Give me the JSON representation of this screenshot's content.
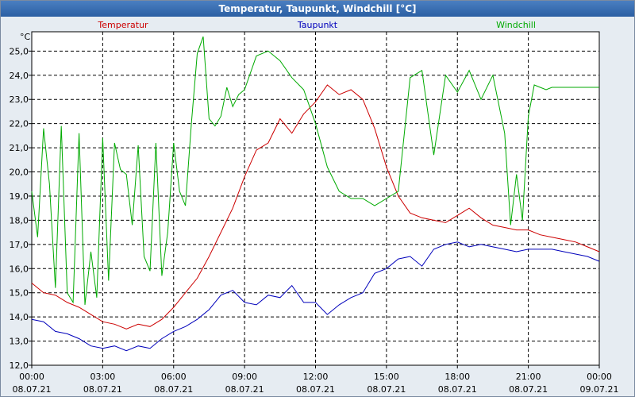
{
  "window": {
    "title": "Temperatur, Taupunkt, Windchill [°C]"
  },
  "chart_data": {
    "type": "line",
    "title": "Temperatur, Taupunkt, Windchill [°C]",
    "ylabel": "°C",
    "xlabel": "",
    "ylim": [
      12.0,
      25.8
    ],
    "xlim_hours": [
      0,
      24
    ],
    "grid": true,
    "y_ticks": [
      "12,0",
      "13,0",
      "14,0",
      "15,0",
      "16,0",
      "17,0",
      "18,0",
      "19,0",
      "20,0",
      "21,0",
      "22,0",
      "23,0",
      "24,0",
      "25,0"
    ],
    "x_ticks": [
      {
        "time": "00:00",
        "date": "08.07.21"
      },
      {
        "time": "03:00",
        "date": "08.07.21"
      },
      {
        "time": "06:00",
        "date": "08.07.21"
      },
      {
        "time": "09:00",
        "date": "08.07.21"
      },
      {
        "time": "12:00",
        "date": "08.07.21"
      },
      {
        "time": "15:00",
        "date": "08.07.21"
      },
      {
        "time": "18:00",
        "date": "08.07.21"
      },
      {
        "time": "21:00",
        "date": "08.07.21"
      },
      {
        "time": "00:00",
        "date": "09.07.21"
      }
    ],
    "series": [
      {
        "name": "Temperatur",
        "color": "#cc0000",
        "x": [
          0,
          0.5,
          1,
          1.5,
          2,
          2.5,
          3,
          3.5,
          4,
          4.5,
          5,
          5.5,
          6,
          6.5,
          7,
          7.5,
          8,
          8.5,
          9,
          9.5,
          10,
          10.5,
          11,
          11.5,
          12,
          12.5,
          13,
          13.5,
          14,
          14.5,
          15,
          15.5,
          16,
          16.5,
          17,
          17.5,
          18,
          18.5,
          19,
          19.5,
          20,
          20.5,
          21,
          21.5,
          22,
          22.5,
          23,
          23.5,
          24
        ],
        "values": [
          15.4,
          15.0,
          14.9,
          14.6,
          14.4,
          14.1,
          13.8,
          13.7,
          13.5,
          13.7,
          13.6,
          13.9,
          14.4,
          15.0,
          15.6,
          16.5,
          17.5,
          18.5,
          19.8,
          20.9,
          21.2,
          22.2,
          21.6,
          22.4,
          22.9,
          23.6,
          23.2,
          23.4,
          23.0,
          21.8,
          20.2,
          19.0,
          18.3,
          18.1,
          18.0,
          17.9,
          18.2,
          18.5,
          18.1,
          17.8,
          17.7,
          17.6,
          17.6,
          17.4,
          17.3,
          17.2,
          17.1,
          16.9,
          16.7
        ]
      },
      {
        "name": "Taupunkt",
        "color": "#0000bb",
        "x": [
          0,
          0.5,
          1,
          1.5,
          2,
          2.5,
          3,
          3.5,
          4,
          4.5,
          5,
          5.5,
          6,
          6.5,
          7,
          7.5,
          8,
          8.5,
          9,
          9.5,
          10,
          10.5,
          11,
          11.5,
          12,
          12.5,
          13,
          13.5,
          14,
          14.5,
          15,
          15.5,
          16,
          16.5,
          17,
          17.5,
          18,
          18.5,
          19,
          19.5,
          20,
          20.5,
          21,
          21.5,
          22,
          22.5,
          23,
          23.5,
          24
        ],
        "values": [
          13.9,
          13.8,
          13.4,
          13.3,
          13.1,
          12.8,
          12.7,
          12.8,
          12.6,
          12.8,
          12.7,
          13.1,
          13.4,
          13.6,
          13.9,
          14.3,
          14.9,
          15.1,
          14.6,
          14.5,
          14.9,
          14.8,
          15.3,
          14.6,
          14.6,
          14.1,
          14.5,
          14.8,
          15.0,
          15.8,
          16.0,
          16.4,
          16.5,
          16.1,
          16.8,
          17.0,
          17.1,
          16.9,
          17.0,
          16.9,
          16.8,
          16.7,
          16.8,
          16.8,
          16.8,
          16.7,
          16.6,
          16.5,
          16.3
        ]
      },
      {
        "name": "Windchill",
        "color": "#00aa00",
        "x": [
          0,
          0.25,
          0.5,
          0.75,
          1,
          1.25,
          1.5,
          1.75,
          2,
          2.25,
          2.5,
          2.75,
          3,
          3.25,
          3.5,
          3.75,
          4,
          4.25,
          4.5,
          4.75,
          5,
          5.25,
          5.5,
          5.75,
          6,
          6.25,
          6.5,
          6.75,
          7,
          7.25,
          7.5,
          7.75,
          8,
          8.25,
          8.5,
          8.75,
          9,
          9.5,
          10,
          10.5,
          11,
          11.5,
          12,
          12.5,
          13,
          13.5,
          14,
          14.5,
          15,
          15.5,
          16,
          16.5,
          17,
          17.5,
          18,
          18.5,
          19,
          19.5,
          20,
          20.25,
          20.5,
          20.75,
          21,
          21.25,
          21.5,
          21.75,
          22,
          22.25,
          22.5,
          22.75,
          23,
          23.25,
          23.5,
          24
        ],
        "values": [
          19.2,
          17.3,
          21.8,
          19.5,
          15.2,
          21.9,
          15.0,
          14.6,
          21.6,
          14.5,
          16.7,
          14.8,
          21.4,
          15.5,
          21.2,
          20.1,
          19.9,
          17.8,
          21.1,
          16.5,
          15.9,
          21.2,
          15.7,
          17.5,
          21.2,
          19.2,
          18.6,
          22.0,
          24.9,
          25.6,
          22.2,
          21.9,
          22.3,
          23.5,
          22.7,
          23.2,
          23.4,
          24.8,
          25.0,
          24.6,
          23.9,
          23.4,
          22.0,
          20.2,
          19.2,
          18.9,
          18.9,
          18.6,
          18.9,
          19.2,
          23.9,
          24.2,
          20.7,
          24.0,
          23.3,
          24.2,
          23.0,
          24.0,
          21.6,
          17.8,
          19.9,
          18.0,
          22.3,
          23.6,
          23.5,
          23.4,
          23.5,
          23.5,
          23.5,
          23.5,
          23.5,
          23.5,
          23.5,
          23.5
        ]
      }
    ]
  }
}
